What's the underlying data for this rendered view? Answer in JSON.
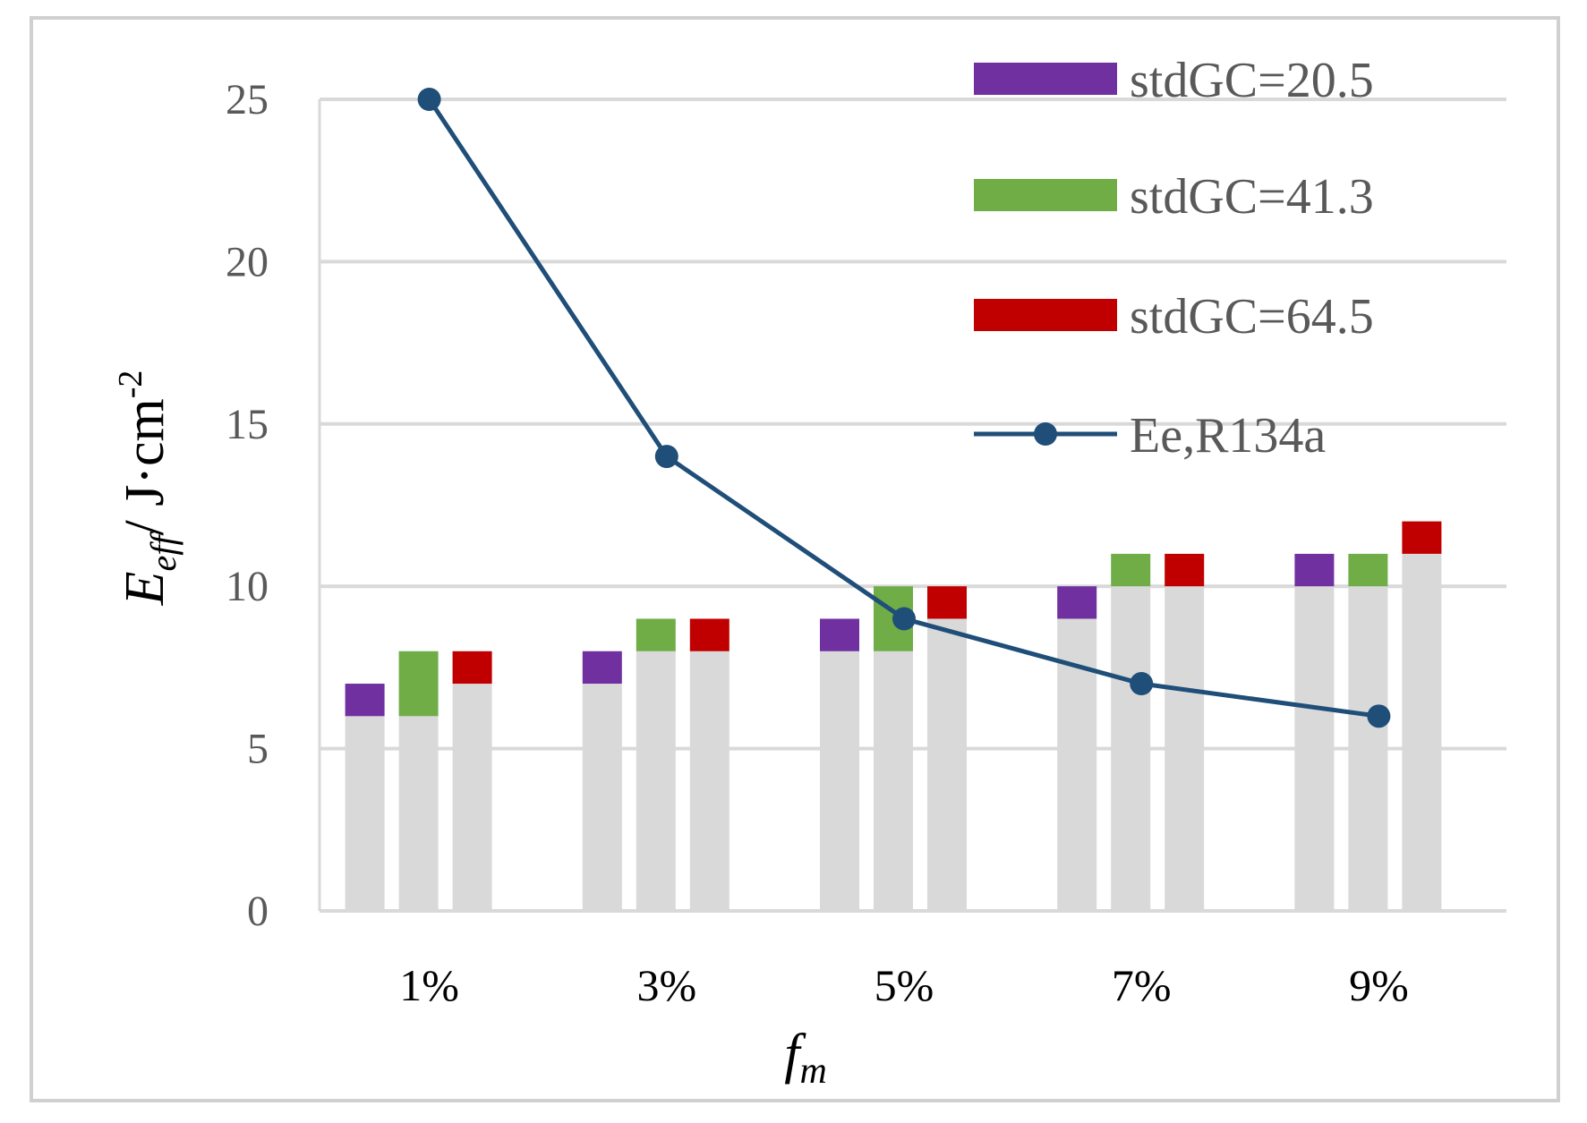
{
  "chart_data": {
    "type": "bar",
    "categories": [
      "1%",
      "3%",
      "5%",
      "7%",
      "9%"
    ],
    "ylim": [
      0,
      25
    ],
    "yticks": [
      0,
      5,
      10,
      15,
      20,
      25
    ],
    "grid": true,
    "legend_position": "top-right",
    "xlabel": {
      "main": "f",
      "sub": "m"
    },
    "ylabel": {
      "main": "E",
      "sub": "eff",
      "unit": "/ J·cm",
      "sup": "-2"
    },
    "series": [
      {
        "name": "stdGC=20.5",
        "color": "#7030a0",
        "base": [
          6,
          7,
          8,
          9,
          10
        ],
        "top": [
          7,
          8,
          9,
          10,
          11
        ]
      },
      {
        "name": "stdGC=41.3",
        "color": "#70ad47",
        "base": [
          6,
          8,
          8,
          10,
          10
        ],
        "top": [
          8,
          9,
          10,
          11,
          11
        ]
      },
      {
        "name": "stdGC=64.5",
        "color": "#c00000",
        "base": [
          7,
          8,
          9,
          10,
          11
        ],
        "top": [
          8,
          9,
          10,
          11,
          12
        ]
      }
    ],
    "base_color": "#d9d9d9",
    "line": {
      "name": "Ee,R134a",
      "color": "#1f4e79",
      "values": [
        25,
        14,
        9,
        7,
        6
      ]
    }
  }
}
